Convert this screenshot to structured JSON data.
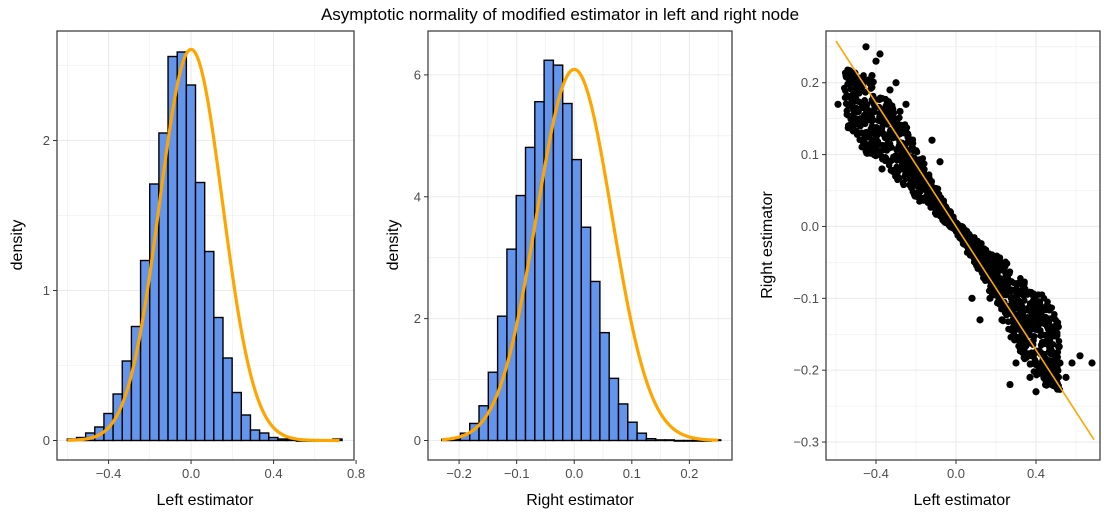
{
  "title": "Asymptotic normality of modified estimator in left and right node",
  "colors": {
    "bar_fill": "#6495ED",
    "bar_stroke": "#000000",
    "curve": "#FFA500",
    "points": "#000000",
    "grid": "#EBEBEB",
    "panel_border": "#333333",
    "tick_label": "#4D4D4D"
  },
  "chart_data": [
    {
      "type": "histogram",
      "xlabel": "Left estimator",
      "ylabel": "density",
      "xlim": [
        -0.65,
        0.79
      ],
      "ylim": [
        -0.13,
        2.73
      ],
      "xticks": [
        -0.4,
        0.0,
        0.4,
        0.8
      ],
      "xtick_labels": [
        "−0.4",
        "0.0",
        "0.4",
        "0.8"
      ],
      "yticks": [
        0,
        1,
        2
      ],
      "ytick_labels": [
        "0",
        "1",
        "2"
      ],
      "bin_width": 0.0444,
      "bin_start": -0.6,
      "bar_heights": [
        0.01,
        0.02,
        0.05,
        0.09,
        0.18,
        0.31,
        0.53,
        0.76,
        1.2,
        1.71,
        2.05,
        2.56,
        2.59,
        2.37,
        1.72,
        1.26,
        0.82,
        0.55,
        0.32,
        0.17,
        0.07,
        0.05,
        0.02,
        0.01,
        0.01,
        0.0,
        0.0,
        0.0,
        0.0,
        0.01
      ],
      "density_curve": {
        "mean": 0.0,
        "sd": 0.153
      },
      "curve_x_range": [
        -0.6,
        0.72
      ]
    },
    {
      "type": "histogram",
      "xlabel": "Right estimator",
      "ylabel": "density",
      "xlim": [
        -0.254,
        0.274
      ],
      "ylim": [
        -0.32,
        6.72
      ],
      "xticks": [
        -0.2,
        -0.1,
        0.0,
        0.1,
        0.2
      ],
      "xtick_labels": [
        "−0.2",
        "−0.1",
        "0.0",
        "0.1",
        "0.2"
      ],
      "yticks": [
        0,
        2,
        4,
        6
      ],
      "ytick_labels": [
        "0",
        "2",
        "4",
        "6"
      ],
      "bin_width": 0.01615,
      "bin_start": -0.23,
      "bar_heights": [
        0.02,
        0.02,
        0.12,
        0.28,
        0.57,
        1.12,
        2.04,
        3.14,
        4.02,
        4.81,
        5.56,
        6.24,
        6.16,
        5.53,
        4.61,
        3.5,
        2.61,
        1.77,
        1.02,
        0.6,
        0.3,
        0.12,
        0.03,
        0.01,
        0.01,
        0.0,
        0.0,
        0.0,
        0.0,
        0.01
      ],
      "density_curve": {
        "mean": 0.0,
        "sd": 0.0655
      },
      "curve_x_range": [
        -0.23,
        0.25
      ]
    },
    {
      "type": "scatter",
      "xlabel": "Left estimator",
      "ylabel": "Right estimator",
      "xlim": [
        -0.65,
        0.72
      ],
      "ylim": [
        -0.325,
        0.272
      ],
      "xticks": [
        -0.4,
        0.0,
        0.4
      ],
      "xtick_labels": [
        "−0.4",
        "0.0",
        "0.4"
      ],
      "yticks": [
        -0.3,
        -0.2,
        -0.1,
        0.0,
        0.1,
        0.2
      ],
      "ytick_labels": [
        "−0.3",
        "−0.2",
        "−0.1",
        "0.0",
        "0.1",
        "0.2"
      ],
      "fit_line": {
        "intercept": 0.0,
        "slope": -0.43,
        "x_range": [
          -0.6,
          0.69
        ]
      },
      "points": [
        [
          -0.59,
          0.17
        ],
        [
          -0.55,
          0.21
        ],
        [
          -0.52,
          0.2
        ],
        [
          -0.5,
          0.15
        ],
        [
          -0.47,
          0.13
        ],
        [
          -0.45,
          0.25
        ],
        [
          -0.42,
          0.21
        ],
        [
          -0.4,
          0.23
        ],
        [
          -0.38,
          0.24
        ],
        [
          -0.35,
          0.16
        ],
        [
          -0.33,
          0.19
        ],
        [
          -0.3,
          0.2
        ],
        [
          -0.28,
          0.16
        ],
        [
          -0.25,
          0.17
        ],
        [
          -0.37,
          0.08
        ],
        [
          -0.27,
          0.09
        ],
        [
          -0.22,
          0.11
        ],
        [
          -0.18,
          0.08
        ],
        [
          -0.15,
          0.06
        ],
        [
          0.17,
          -0.1
        ],
        [
          0.2,
          -0.07
        ],
        [
          0.23,
          -0.13
        ],
        [
          0.27,
          -0.22
        ],
        [
          0.3,
          -0.19
        ],
        [
          0.33,
          -0.15
        ],
        [
          0.37,
          -0.21
        ],
        [
          0.4,
          -0.23
        ],
        [
          0.42,
          -0.12
        ],
        [
          0.45,
          -0.16
        ],
        [
          0.48,
          -0.22
        ],
        [
          0.52,
          -0.19
        ],
        [
          0.55,
          -0.21
        ],
        [
          0.58,
          -0.19
        ],
        [
          0.62,
          -0.18
        ],
        [
          0.68,
          -0.19
        ],
        [
          0.08,
          -0.1
        ],
        [
          -0.08,
          0.09
        ],
        [
          0.12,
          -0.13
        ],
        [
          -0.12,
          0.12
        ]
      ],
      "cloud_bands": [
        {
          "x": -0.55,
          "ylo": 0.14,
          "yhi": 0.22
        },
        {
          "x": -0.45,
          "ylo": 0.1,
          "yhi": 0.21
        },
        {
          "x": -0.35,
          "ylo": 0.09,
          "yhi": 0.18
        },
        {
          "x": -0.25,
          "ylo": 0.05,
          "yhi": 0.14
        },
        {
          "x": -0.15,
          "ylo": 0.03,
          "yhi": 0.08
        },
        {
          "x": -0.05,
          "ylo": 0.005,
          "yhi": 0.03
        },
        {
          "x": 0.0,
          "ylo": -0.005,
          "yhi": 0.005
        },
        {
          "x": 0.05,
          "ylo": -0.03,
          "yhi": -0.005
        },
        {
          "x": 0.15,
          "ylo": -0.08,
          "yhi": -0.03
        },
        {
          "x": 0.25,
          "ylo": -0.14,
          "yhi": -0.05
        },
        {
          "x": 0.35,
          "ylo": -0.19,
          "yhi": -0.08
        },
        {
          "x": 0.45,
          "ylo": -0.22,
          "yhi": -0.1
        },
        {
          "x": 0.52,
          "ylo": -0.23,
          "yhi": -0.13
        }
      ]
    }
  ]
}
